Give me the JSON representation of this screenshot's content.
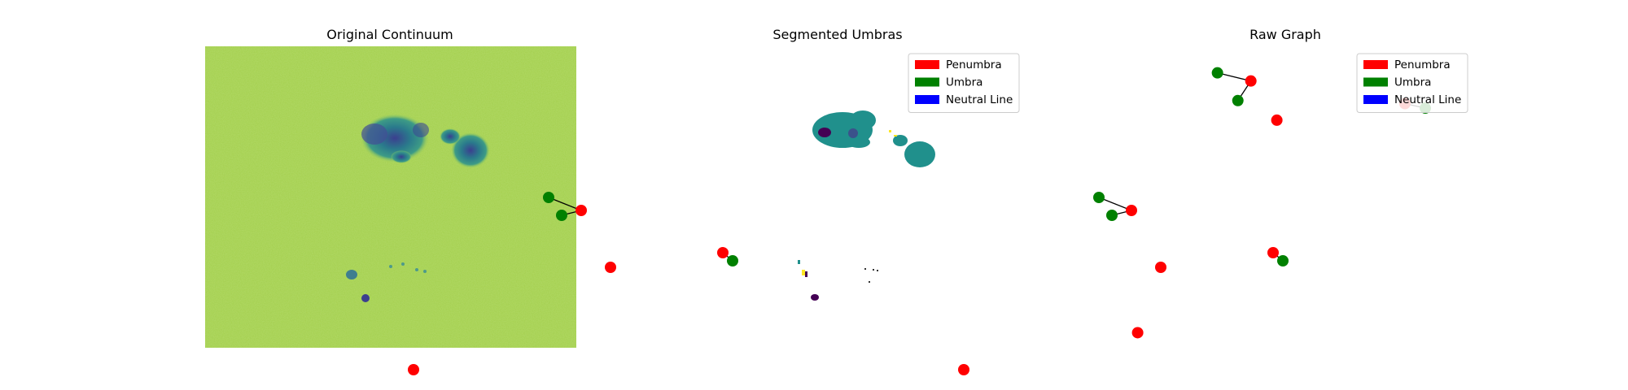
{
  "chart_data": [
    {
      "type": "scatter",
      "title": "Original Continuum",
      "axes": "off",
      "background": "continuum-image",
      "node_colors": {
        "penumbra": "#ff0000",
        "umbra": "#008000"
      },
      "penumbra_nodes": [
        [
          231,
          101
        ],
        [
          318,
          127
        ],
        [
          249,
          136
        ],
        [
          128,
          199
        ]
      ],
      "umbra_nodes": [
        [
          211,
          93
        ],
        [
          219,
          104
        ],
        [
          324,
          132
        ]
      ],
      "edges": [
        [
          [
            211,
            93
          ],
          [
            231,
            101
          ]
        ],
        [
          [
            219,
            104
          ],
          [
            231,
            101
          ]
        ],
        [
          [
            318,
            127
          ],
          [
            324,
            132
          ]
        ]
      ]
    },
    {
      "type": "scatter",
      "title": "Segmented Umbras",
      "axes": "off",
      "background": "segmentation-mask",
      "legend": {
        "position": "top-right",
        "entries": [
          {
            "label": "Penumbra",
            "color": "#ff0000"
          },
          {
            "label": "Umbra",
            "color": "#008000"
          },
          {
            "label": "Neutral Line",
            "color": "#0000ff"
          }
        ]
      },
      "penumbra_nodes": [
        [
          231,
          101
        ],
        [
          318,
          127
        ],
        [
          249,
          136
        ],
        [
          128,
          199
        ]
      ],
      "umbra_nodes": [
        [
          211,
          93
        ],
        [
          219,
          104
        ],
        [
          324,
          132
        ]
      ],
      "edges": [
        [
          [
            211,
            93
          ],
          [
            231,
            101
          ]
        ],
        [
          [
            219,
            104
          ],
          [
            231,
            101
          ]
        ],
        [
          [
            318,
            127
          ],
          [
            324,
            132
          ]
        ]
      ]
    },
    {
      "type": "scatter",
      "title": "Raw Graph",
      "axes": "off",
      "legend": {
        "position": "top-right",
        "entries": [
          {
            "label": "Penumbra",
            "color": "#ff0000"
          },
          {
            "label": "Umbra",
            "color": "#008000"
          },
          {
            "label": "Neutral Line",
            "color": "#0000ff"
          }
        ]
      },
      "penumbra_nodes": [
        [
          0.405,
          0.885
        ],
        [
          0.475,
          0.755
        ],
        [
          0.82,
          0.81
        ],
        [
          0.1,
          0.05
        ]
      ],
      "umbra_nodes": [
        [
          0.315,
          0.912
        ],
        [
          0.37,
          0.82
        ],
        [
          0.875,
          0.795
        ]
      ],
      "edges": [
        [
          [
            0.315,
            0.912
          ],
          [
            0.405,
            0.885
          ]
        ],
        [
          [
            0.37,
            0.82
          ],
          [
            0.405,
            0.885
          ]
        ],
        [
          [
            0.82,
            0.81
          ],
          [
            0.875,
            0.795
          ]
        ]
      ]
    }
  ]
}
